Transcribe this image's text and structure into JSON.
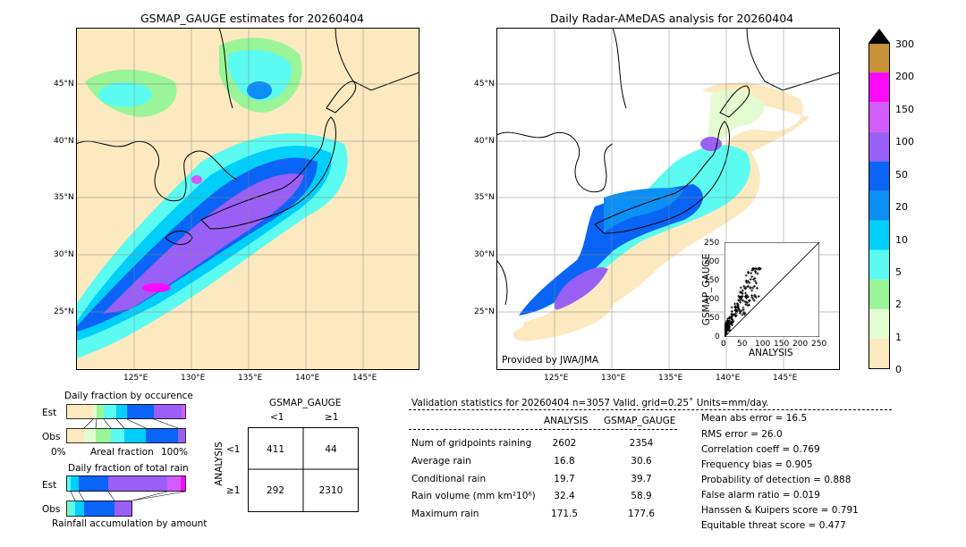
{
  "map_left": {
    "title": "GSMAP_GAUGE estimates for 20260404",
    "lat_labels": [
      "45°N",
      "40°N",
      "35°N",
      "30°N",
      "25°N"
    ],
    "lon_labels": [
      "125°E",
      "130°E",
      "135°E",
      "140°E",
      "145°E"
    ]
  },
  "map_right": {
    "title": "Daily Radar-AMeDAS analysis for 20260404",
    "lat_labels": [
      "45°N",
      "40°N",
      "35°N",
      "30°N",
      "25°N"
    ],
    "lon_labels": [
      "125°E",
      "130°E",
      "135°E",
      "140°E",
      "145°E"
    ],
    "credit": "Provided by JWA/JMA"
  },
  "colorbar": {
    "levels": [
      "0",
      "1",
      "2",
      "5",
      "10",
      "20",
      "50",
      "100",
      "150",
      "200",
      "300"
    ],
    "colors": [
      "#fde9bf",
      "#e3fbd0",
      "#99f598",
      "#5cfbf1",
      "#00cffb",
      "#0c8ff5",
      "#0a64f6",
      "#9a5ff5",
      "#d25cf9",
      "#fc0afb",
      "#ca923a"
    ]
  },
  "scatter": {
    "xlabel": "ANALYSIS",
    "ylabel": "GSMAP_GAUGE",
    "ticks": [
      "0",
      "50",
      "100",
      "150",
      "200",
      "250"
    ]
  },
  "occurrence": {
    "title": "Daily fraction by occurence",
    "row_est": "Est",
    "row_obs": "Obs",
    "axis_left": "0%",
    "axis_mid": "Areal fraction",
    "axis_right": "100%"
  },
  "total_rain": {
    "title": "Daily fraction of total rain",
    "row_est": "Est",
    "row_obs": "Obs",
    "footer": "Rainfall accumulation by amount"
  },
  "contingency": {
    "title": "GSMAP_GAUGE",
    "col_lt": "<1",
    "col_ge": "≥1",
    "row_title": "ANALYSIS",
    "row_lt": "<1",
    "row_ge": "≥1",
    "c11": "411",
    "c12": "44",
    "c21": "292",
    "c22": "2310"
  },
  "validation": {
    "header": "Validation statistics for 20260404  n=3057 Valid. grid=0.25˚ Units=mm/day.",
    "col_analysis": "ANALYSIS",
    "col_gsmap": "GSMAP_GAUGE",
    "rows": [
      {
        "label": "Num of gridpoints raining",
        "a": "2602",
        "g": "2354"
      },
      {
        "label": "Average rain",
        "a": "16.8",
        "g": "30.6"
      },
      {
        "label": "Conditional rain",
        "a": "19.7",
        "g": "39.7"
      },
      {
        "label": "Rain volume (mm km²10⁶)",
        "a": "32.4",
        "g": "58.9"
      },
      {
        "label": "Maximum rain",
        "a": "171.5",
        "g": "177.6"
      }
    ],
    "scores": [
      "Mean abs error =   16.5",
      "RMS error =   26.0",
      "Correlation coeff =  0.769",
      "Frequency bias =  0.905",
      "Probability of detection =  0.888",
      "False alarm ratio =  0.019",
      "Hanssen & Kuipers score =  0.791",
      "Equitable threat score =  0.477"
    ]
  },
  "chart_data": [
    {
      "type": "heatmap",
      "title": "GSMAP_GAUGE estimates for 20260404",
      "x_ticks": [
        "125°E",
        "130°E",
        "135°E",
        "140°E",
        "145°E"
      ],
      "y_ticks": [
        "45°N",
        "40°N",
        "35°N",
        "30°N",
        "25°N"
      ],
      "color_levels": [
        0,
        1,
        2,
        5,
        10,
        20,
        50,
        100,
        150,
        200,
        300
      ]
    },
    {
      "type": "heatmap",
      "title": "Daily Radar-AMeDAS analysis for 20260404",
      "x_ticks": [
        "125°E",
        "130°E",
        "135°E",
        "140°E",
        "145°E"
      ],
      "y_ticks": [
        "45°N",
        "40°N",
        "35°N",
        "30°N",
        "25°N"
      ],
      "color_levels": [
        0,
        1,
        2,
        5,
        10,
        20,
        50,
        100,
        150,
        200,
        300
      ]
    },
    {
      "type": "scatter",
      "xlabel": "ANALYSIS",
      "ylabel": "GSMAP_GAUGE",
      "xlim": [
        0,
        250
      ],
      "ylim": [
        0,
        250
      ]
    },
    {
      "type": "table",
      "title": "GSMAP_GAUGE",
      "columns": [
        "<1",
        "≥1"
      ],
      "rows": [
        "<1",
        "≥1"
      ],
      "values": [
        [
          411,
          44
        ],
        [
          292,
          2310
        ]
      ]
    }
  ]
}
